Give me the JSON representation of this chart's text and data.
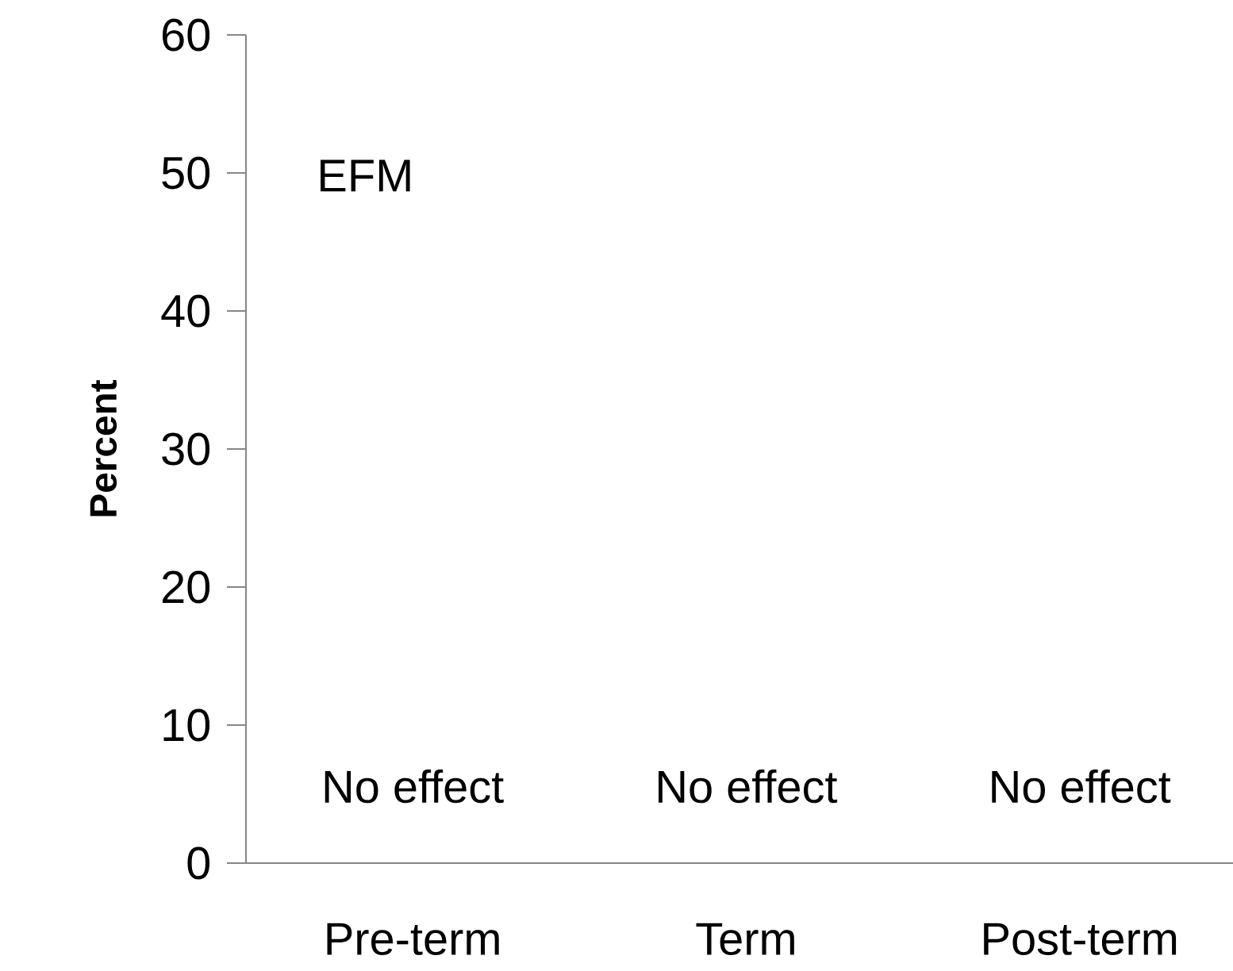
{
  "chart_data": {
    "type": "bar",
    "title": "EFM",
    "ylabel": "Percent",
    "categories": [
      "Pre-term",
      "Term",
      "Post-term"
    ],
    "values": [
      0,
      0,
      0
    ],
    "ylim": [
      0,
      60
    ],
    "yticks": [
      0,
      10,
      20,
      30,
      40,
      50,
      60
    ],
    "annotations": [
      "No effect",
      "No effect",
      "No effect"
    ]
  }
}
